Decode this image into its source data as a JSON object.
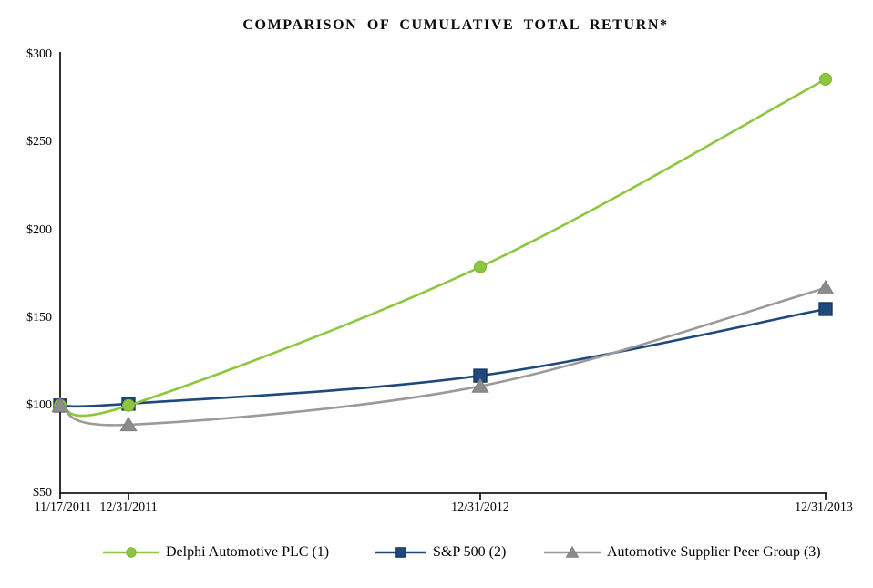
{
  "chart_data": {
    "type": "line",
    "title": "COMPARISON OF CUMULATIVE TOTAL RETURN*",
    "categories": [
      "11/17/2011",
      "12/31/2011",
      "12/31/2012",
      "12/31/2013"
    ],
    "series": [
      {
        "name": "Delphi Automotive PLC (1)",
        "marker": "circle",
        "line_color": "#8DC63F",
        "marker_color": "#8DC63F",
        "marker_edge": "#7AB234",
        "values": [
          100,
          100,
          179,
          286
        ]
      },
      {
        "name": "S&P 500 (2)",
        "marker": "square",
        "line_color": "#1F497D",
        "marker_color": "#1F497D",
        "marker_edge": "#16365F",
        "values": [
          100,
          101,
          117,
          155
        ]
      },
      {
        "name": "Automotive Supplier Peer Group (3)",
        "marker": "triangle",
        "line_color": "#9A9A9A",
        "marker_color": "#8C8C8C",
        "marker_edge": "#7F7F7F",
        "values": [
          100,
          89,
          111,
          167
        ]
      }
    ],
    "y_ticks": [
      "$300",
      "$250",
      "$200",
      "$150",
      "$100",
      "$50"
    ],
    "y_tick_values": [
      300,
      250,
      200,
      150,
      100,
      50
    ],
    "ylim": [
      50,
      300
    ],
    "grid": false,
    "legend_position": "bottom",
    "axis_color": "#1a1a1a",
    "smooth_lines": true
  }
}
